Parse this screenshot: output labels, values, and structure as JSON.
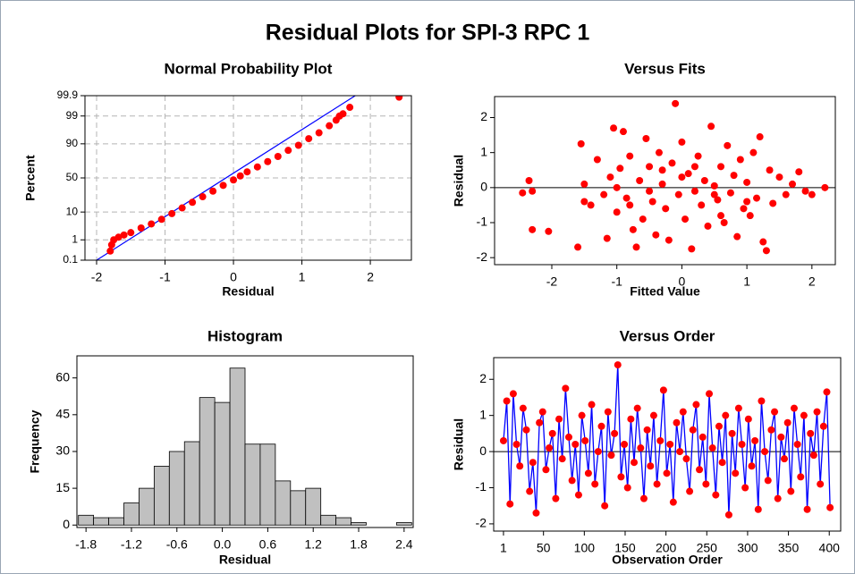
{
  "title": "Residual Plots for SPI-3 RPC 1",
  "chart_data": [
    {
      "type": "probability",
      "title": "Normal Probability Plot",
      "xlabel": "Residual",
      "ylabel": "Percent",
      "x": [
        -1.8,
        -1.78,
        -1.75,
        -1.68,
        -1.6,
        -1.5,
        -1.35,
        -1.2,
        -1.05,
        -0.9,
        -0.75,
        -0.6,
        -0.45,
        -0.3,
        -0.15,
        0.0,
        0.1,
        0.2,
        0.35,
        0.5,
        0.65,
        0.8,
        0.95,
        1.1,
        1.25,
        1.4,
        1.5,
        1.55,
        1.6,
        1.7,
        2.42
      ],
      "y": [
        0.3,
        0.6,
        1.0,
        1.3,
        1.6,
        2.0,
        3.0,
        4.2,
        6,
        9,
        13,
        18,
        24,
        31,
        39,
        47,
        53,
        59,
        66,
        73,
        79,
        85,
        89,
        93,
        95.5,
        97.5,
        98.5,
        99.0,
        99.2,
        99.6,
        99.88
      ],
      "fit_line": {
        "x": [
          -2.0,
          1.78
        ],
        "y": [
          0.1,
          99.9
        ]
      },
      "color": "#ff0000",
      "line_color": "#0000ff",
      "yscale": "probability",
      "grid": true,
      "xlim": [
        -2.17,
        2.6
      ],
      "xticks": [
        -2,
        -1,
        0,
        1,
        2
      ],
      "ylim": [
        0.1,
        99.9
      ],
      "yticks": [
        0.1,
        1,
        10,
        50,
        90,
        99,
        99.9
      ]
    },
    {
      "type": "scatter",
      "title": "Versus Fits",
      "xlabel": "Fitted Value",
      "ylabel": "Residual",
      "x": [
        -2.45,
        -2.35,
        -2.3,
        -2.3,
        -2.05,
        -1.6,
        -1.55,
        -1.5,
        -1.4,
        -1.3,
        -1.2,
        -1.15,
        -1.1,
        -1.05,
        -1.0,
        -0.95,
        -0.9,
        -0.85,
        -0.8,
        -0.75,
        -0.7,
        -0.65,
        -0.6,
        -0.55,
        -0.5,
        -0.45,
        -0.4,
        -0.35,
        -0.3,
        -0.25,
        -0.2,
        -0.15,
        -0.1,
        -0.05,
        0.0,
        0.05,
        0.1,
        0.15,
        0.2,
        0.25,
        0.3,
        0.35,
        0.4,
        0.45,
        0.5,
        0.55,
        0.6,
        0.65,
        0.7,
        0.75,
        0.8,
        0.85,
        0.9,
        0.95,
        1.0,
        1.05,
        1.1,
        1.15,
        1.2,
        1.25,
        1.3,
        1.35,
        1.4,
        1.5,
        1.6,
        1.7,
        1.8,
        1.9,
        2.0,
        2.2,
        -1.5,
        -1.0,
        -0.5,
        0.0,
        0.5,
        1.0,
        0.2,
        -0.3,
        0.6,
        -0.8
      ],
      "y": [
        -0.15,
        0.2,
        -0.1,
        -1.2,
        -1.25,
        -1.7,
        1.25,
        0.1,
        -0.5,
        0.8,
        -0.2,
        -1.45,
        0.3,
        1.7,
        -0.7,
        0.55,
        1.6,
        -0.3,
        0.9,
        -1.2,
        -1.7,
        0.2,
        -0.9,
        1.4,
        0.6,
        -0.4,
        -1.35,
        1.0,
        0.1,
        -0.6,
        -1.5,
        0.7,
        2.4,
        -0.2,
        1.3,
        -0.9,
        0.4,
        -1.75,
        -0.1,
        0.9,
        -0.5,
        0.2,
        -1.1,
        1.75,
        0.05,
        -0.35,
        0.6,
        -1.0,
        1.2,
        -0.15,
        0.35,
        -1.4,
        0.8,
        -0.6,
        0.15,
        -0.8,
        1.0,
        -0.3,
        1.45,
        -1.55,
        -1.8,
        0.5,
        -0.45,
        0.3,
        -0.2,
        0.1,
        0.45,
        -0.1,
        -0.2,
        0.0,
        -0.4,
        0.0,
        -0.1,
        0.3,
        -0.2,
        -0.4,
        0.6,
        0.5,
        -0.8,
        -0.5
      ],
      "ref_line": 0,
      "color": "#ff0000",
      "xlim": [
        -2.88,
        2.36
      ],
      "xticks": [
        -2,
        -1,
        0,
        1,
        2
      ],
      "ylim": [
        -2.2,
        2.6
      ],
      "yticks": [
        -2,
        -1,
        0,
        1,
        2
      ]
    },
    {
      "type": "histogram",
      "title": "Histogram",
      "xlabel": "Residual",
      "ylabel": "Frequency",
      "bins": [
        -1.9,
        -1.7,
        -1.5,
        -1.3,
        -1.1,
        -0.9,
        -0.7,
        -0.5,
        -0.3,
        -0.1,
        0.1,
        0.3,
        0.5,
        0.7,
        0.9,
        1.1,
        1.3,
        1.5,
        1.7,
        1.9,
        2.1,
        2.3,
        2.5
      ],
      "counts": [
        4,
        3,
        3,
        9,
        15,
        24,
        30,
        34,
        52,
        50,
        64,
        33,
        33,
        18,
        14,
        15,
        4,
        3,
        1,
        0,
        0,
        1
      ],
      "color": "#c0c0c0",
      "xlim": [
        -1.92,
        2.52
      ],
      "xticks": [
        -1.8,
        -1.2,
        -0.6,
        {
          "value": 0,
          "label": "0.0"
        },
        0.6,
        1.2,
        1.8,
        2.4
      ],
      "ylim": [
        -1,
        69
      ],
      "yticks": [
        0,
        15,
        30,
        45,
        60
      ]
    },
    {
      "type": "line",
      "title": "Versus Order",
      "xlabel": "Observation Order",
      "ylabel": "Residual",
      "x": [
        1,
        5,
        9,
        13,
        17,
        21,
        25,
        29,
        33,
        37,
        41,
        45,
        49,
        53,
        57,
        61,
        65,
        69,
        73,
        77,
        81,
        85,
        89,
        93,
        97,
        101,
        105,
        109,
        113,
        117,
        121,
        125,
        129,
        133,
        137,
        141,
        145,
        149,
        153,
        157,
        161,
        165,
        169,
        173,
        177,
        181,
        185,
        189,
        193,
        197,
        201,
        205,
        209,
        213,
        217,
        221,
        225,
        229,
        233,
        237,
        241,
        245,
        249,
        253,
        257,
        261,
        265,
        269,
        273,
        277,
        281,
        285,
        289,
        293,
        297,
        301,
        305,
        309,
        313,
        317,
        321,
        325,
        329,
        333,
        337,
        341,
        345,
        349,
        353,
        357,
        361,
        365,
        369,
        373,
        377,
        381,
        385,
        389,
        393,
        397,
        401
      ],
      "values": [
        0.3,
        1.4,
        -1.45,
        1.6,
        0.2,
        -0.4,
        1.2,
        0.6,
        -1.1,
        -0.3,
        -1.7,
        0.8,
        1.1,
        -0.5,
        0.1,
        0.5,
        -1.3,
        0.9,
        -0.2,
        1.75,
        0.4,
        -0.8,
        0.2,
        -1.2,
        1.0,
        0.3,
        -0.6,
        1.3,
        -0.9,
        0.0,
        0.7,
        -1.5,
        1.1,
        -0.1,
        0.5,
        2.4,
        -0.7,
        0.2,
        -1.0,
        0.9,
        -0.3,
        1.2,
        0.1,
        -1.3,
        0.6,
        -0.4,
        1.0,
        -0.9,
        0.3,
        1.7,
        -0.6,
        0.2,
        -1.4,
        0.8,
        0.0,
        1.1,
        -0.2,
        -1.1,
        0.6,
        1.3,
        -0.5,
        0.4,
        -0.9,
        1.6,
        0.1,
        -1.2,
        0.7,
        -0.3,
        1.0,
        -1.75,
        0.5,
        -0.6,
        1.2,
        0.2,
        -1.0,
        0.9,
        -0.4,
        0.3,
        -1.6,
        1.4,
        0.0,
        -0.8,
        0.6,
        1.1,
        -1.3,
        0.4,
        -0.2,
        0.8,
        -1.1,
        1.2,
        0.2,
        -0.7,
        1.0,
        -1.6,
        0.5,
        -0.1,
        1.1,
        -0.9,
        0.7,
        1.65,
        -1.55
      ],
      "ref_line": 0,
      "color": "#ff0000",
      "line_color": "#0000ff",
      "xlim": [
        -11,
        414
      ],
      "xticks": [
        1,
        50,
        100,
        150,
        200,
        250,
        300,
        350,
        400
      ],
      "ylim": [
        -2.2,
        2.6
      ],
      "yticks": [
        -2,
        -1,
        0,
        1,
        2
      ]
    }
  ]
}
